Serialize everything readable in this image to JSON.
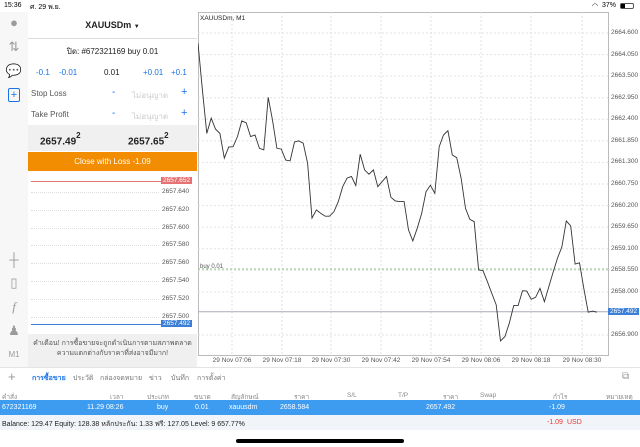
{
  "status": {
    "time": "15:36",
    "date": "ศ. 29 พ.ย.",
    "battery": "37%"
  },
  "order": {
    "symbol": "XAUUSDm",
    "close_title": "ปิด: #672321169 buy 0.01",
    "steps": [
      "-0.1",
      "-0.01",
      "0.01",
      "+0.01",
      "+0.1"
    ],
    "stop_loss_label": "Stop Loss",
    "take_profit_label": "Take Profit",
    "minus": "-",
    "plus": "+",
    "not_set": "ไม่อนุญาต",
    "bid_main": "2657.49",
    "bid_sup": "2",
    "ask_main": "2657.65",
    "ask_sup": "2",
    "close_button": "Close with Loss -1.09",
    "ladder": [
      "2657.640",
      "2657.620",
      "2657.600",
      "2657.580",
      "2657.560",
      "2657.540",
      "2657.520",
      "2657.500"
    ],
    "ladder_ask": "2657.652",
    "ladder_bid": "2657.492",
    "warning": "คำเตือน! การซื้อขายจะถูกดำเนินการตามสภาพตลาด ความแตกต่างกับราคาที่ส่งอาจมีมาก!"
  },
  "toolbar": {
    "timeframe": "M1"
  },
  "colors": {
    "accent": "#1a73e8",
    "orange": "#f28c00",
    "ask": "#e57373",
    "bid": "#3d7fd6",
    "row": "#3d9bf0",
    "loss": "#e53935"
  },
  "chart_data": {
    "type": "line",
    "title": "XAUUSDm, M1",
    "ylim": [
      2656.39,
      2665.11
    ],
    "grid": true,
    "yticks": [
      "2664.600",
      "2664.050",
      "2663.500",
      "2662.950",
      "2662.400",
      "2661.850",
      "2661.300",
      "2660.750",
      "2660.200",
      "2659.650",
      "2659.100",
      "2658.550",
      "2658.000",
      "2656.900"
    ],
    "xticks": [
      "29 Nov 07:06",
      "29 Nov 07:18",
      "29 Nov 07:30",
      "29 Nov 07:42",
      "29 Nov 07:54",
      "29 Nov 08:06",
      "29 Nov 08:18",
      "29 Nov 08:30"
    ],
    "order_line": {
      "label": "buy 0.01",
      "price": 2658.584
    },
    "current_price": {
      "label": "2657.492",
      "price": 2657.492
    },
    "values": [
      2664.34,
      2663.15,
      2662.04,
      2662.43,
      2662.15,
      2662.04,
      2661.41,
      2661.69,
      2661.7,
      2661.96,
      2662.36,
      2662.31,
      2661.96,
      2662.0,
      2661.66,
      2661.62,
      2662.96,
      2662.38,
      2661.66,
      2661.64,
      2661.36,
      2661.34,
      2661.82,
      2661.85,
      2661.79,
      2661.28,
      2659.88,
      2660.09,
      2660.0,
      2659.93,
      2659.93,
      2660.04,
      2660.3,
      2660.68,
      2660.9,
      2660.94,
      2660.71,
      2661.51,
      2661.11,
      2661.0,
      2661.11,
      2660.68,
      2660.81,
      2660.94,
      2660.41,
      2660.32,
      2660.3,
      2660.3,
      2659.58,
      2659.3,
      2659.62,
      2659.99,
      2660.55,
      2660.72,
      2660.51,
      2661.7,
      2662.0,
      2662.11,
      2661.49,
      2661.42,
      2660.9,
      2660.13,
      2659.85,
      2659.79,
      2658.56,
      2658.54,
      2658.26,
      2657.96,
      2657.67,
      2656.75,
      2656.86,
      2657.2,
      2657.65,
      2657.65,
      2658.03,
      2658.02,
      2657.81,
      2657.86,
      2658.09,
      2657.75,
      2658.13,
      2658.51,
      2658.86,
      2659.15,
      2659.81,
      2659.68,
      2658.71,
      2658.74,
      2658.09,
      2657.48,
      2657.51,
      2657.48
    ]
  },
  "tabs": [
    "การซื้อขาย",
    "ประวัติ",
    "กล่องจดหมาย",
    "ข่าว",
    "บันทึก",
    "การตั้งค่า"
  ],
  "table": {
    "headers": [
      "คำสั่ง",
      "เวลา",
      "ประเภท",
      "ขนาด",
      "สัญลักษณ์",
      "ราคา",
      "S/L",
      "T/P",
      "ราคา",
      "Swap",
      "กำไร",
      "หมายเหตุ"
    ],
    "row": {
      "order": "672321169",
      "time": "11.29 08:26",
      "type": "buy",
      "size": "0.01",
      "symbol": "xauusdm",
      "open_price": "2658.584",
      "sl": "",
      "tp": "",
      "price": "2657.492",
      "swap": "",
      "profit": "-1.09",
      "comment": ""
    }
  },
  "summary": {
    "text": "Balance: 129.47 Equity: 128.38 หลักประกัน: 1.33 ฟรี: 127.05 Level: 9 657.77%",
    "total": "-1.09",
    "currency": "USD"
  }
}
